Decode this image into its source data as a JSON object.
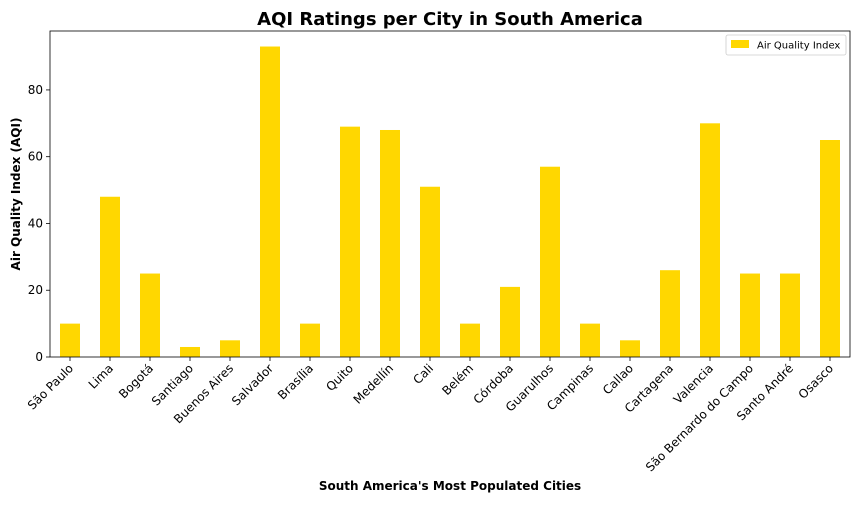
{
  "chart_data": {
    "type": "bar",
    "title": "AQI Ratings per City in South America",
    "xlabel": "South America's Most Populated Cities",
    "ylabel": "Air Quality Index (AQI)",
    "categories": [
      "São Paulo",
      "Lima",
      "Bogotá",
      "Santiago",
      "Buenos Aires",
      "Salvador",
      "Brasília",
      "Quito",
      "Medellín",
      "Cali",
      "Belém",
      "Córdoba",
      "Guarulhos",
      "Campinas",
      "Callao",
      "Cartagena",
      "Valencia",
      "São Bernardo do Campo",
      "Santo André",
      "Osasco"
    ],
    "series": [
      {
        "name": "Air Quality Index",
        "values": [
          10,
          48,
          25,
          3,
          5,
          93,
          10,
          69,
          68,
          51,
          10,
          21,
          57,
          10,
          5,
          26,
          70,
          25,
          25,
          65
        ]
      }
    ],
    "ylim": [
      0,
      97.65
    ],
    "yticks": [
      0,
      20,
      40,
      60,
      80
    ],
    "bar_color": "#FFD700",
    "grid": false,
    "legend_position": "top-right"
  }
}
